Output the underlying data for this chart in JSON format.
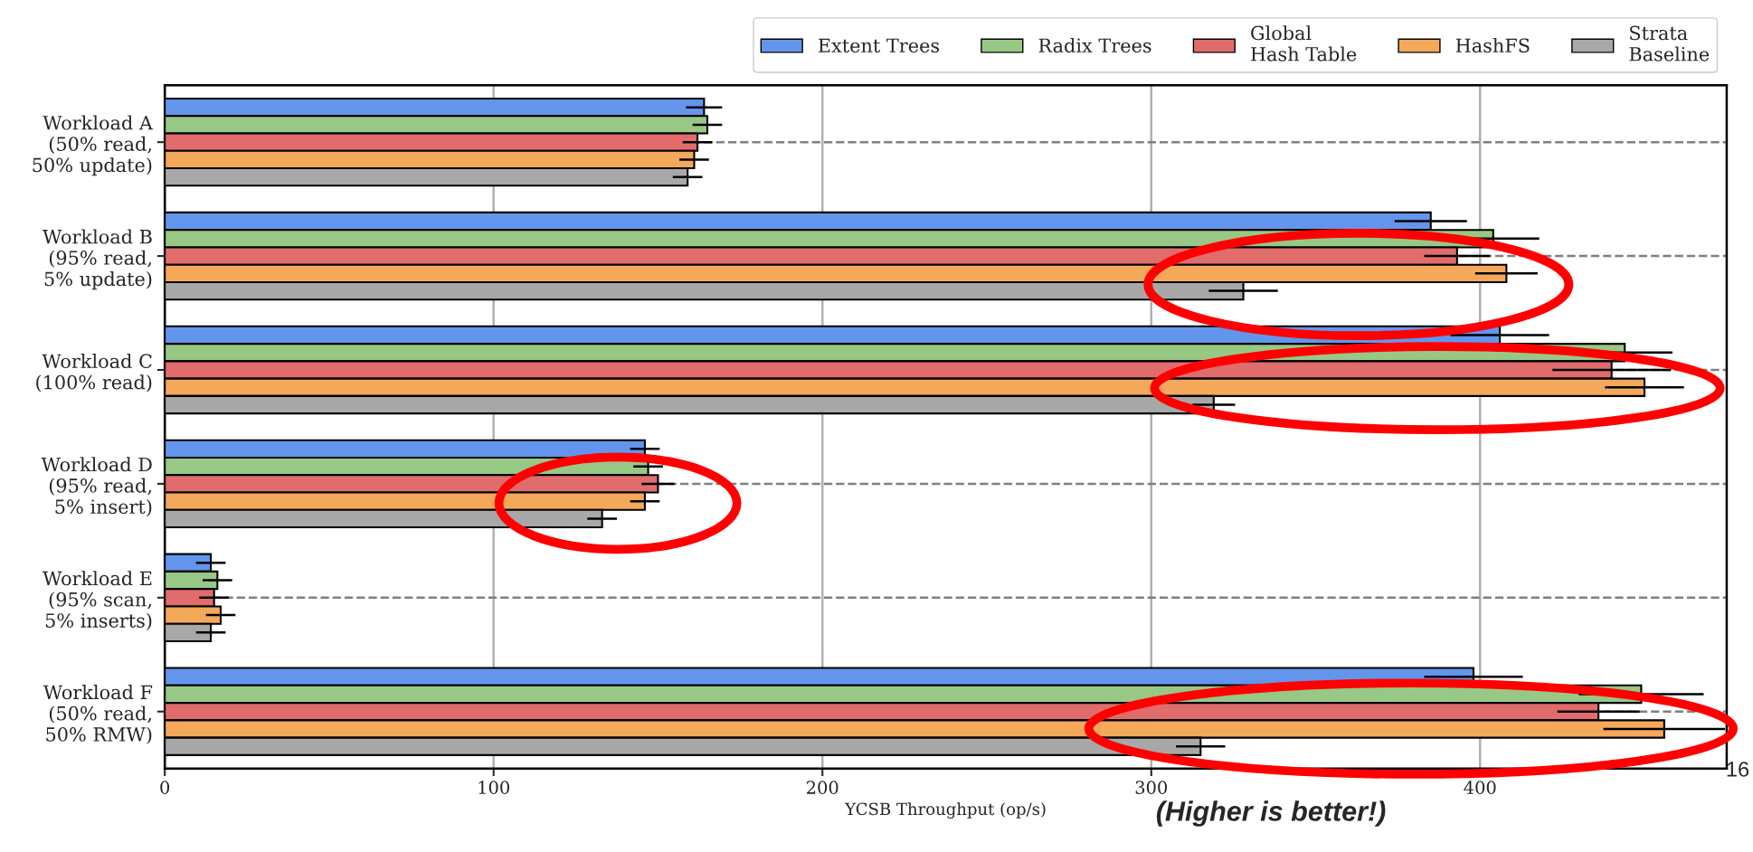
{
  "chart_data": {
    "type": "bar",
    "orientation": "horizontal",
    "xlabel": "YCSB Throughput (op/s)",
    "categories": [
      "Workload A\n(50% read,\n50% update)",
      "Workload B\n(95% read,\n5% update)",
      "Workload C\n(100% read)",
      "Workload D\n(95% read,\n5% insert)",
      "Workload E\n(95% scan,\n5% inserts)",
      "Workload F\n(50% read,\n50% RMW)"
    ],
    "series": [
      {
        "name": "Extent Trees",
        "color": "#6495ed",
        "values": [
          164,
          385,
          406,
          146,
          14,
          398
        ],
        "errors": [
          5.5,
          11,
          15,
          4.5,
          4.5,
          15
        ]
      },
      {
        "name": "Radix Trees",
        "color": "#98c885",
        "values": [
          165,
          404,
          444,
          147,
          16,
          449
        ],
        "errors": [
          4.5,
          14,
          14.5,
          4.5,
          4.5,
          19
        ]
      },
      {
        "name": "Global\nHash Table",
        "color": "#e06c6c",
        "values": [
          162,
          393,
          440,
          150,
          15,
          436
        ],
        "errors": [
          4.5,
          10,
          18,
          5,
          4.5,
          12.5
        ]
      },
      {
        "name": "HashFS",
        "color": "#f4a85a",
        "values": [
          161,
          408,
          450,
          146,
          17,
          456
        ],
        "errors": [
          4.5,
          9.5,
          12,
          4.5,
          4.5,
          18.5
        ]
      },
      {
        "name": "Strata\nBaseline",
        "color": "#a8a8a8",
        "values": [
          159,
          328,
          319,
          133,
          14,
          315
        ],
        "errors": [
          4.5,
          10.5,
          6.5,
          4.5,
          4.5,
          7.5
        ]
      }
    ],
    "xlim": [
      0,
      475
    ],
    "xticks": [
      0,
      100,
      200,
      300,
      400
    ],
    "grid": true,
    "legend": "top right",
    "annotations": [
      "(Higher is better!)",
      "16"
    ]
  }
}
